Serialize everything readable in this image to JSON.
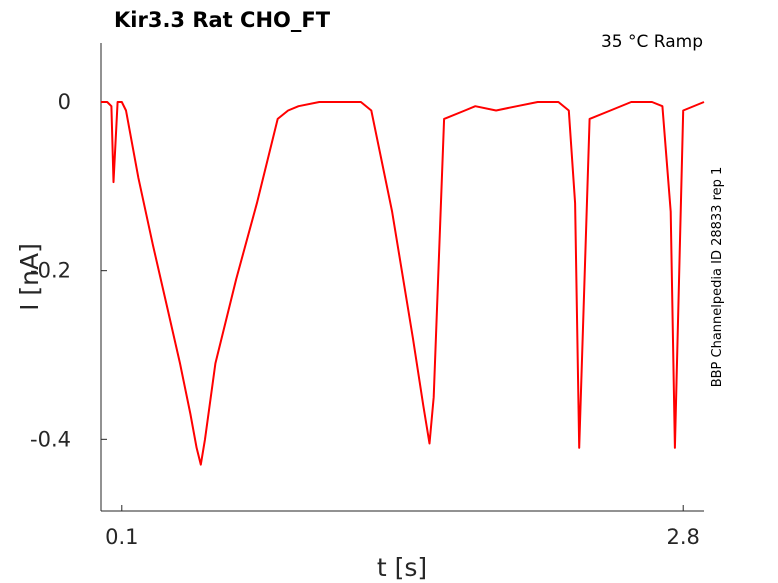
{
  "chart_data": {
    "type": "line",
    "title": "Kir3.3  Rat  CHO_FT",
    "annotation": "35 °C  Ramp",
    "side_label": "BBP Channelpedia ID 28833 rep 1",
    "xlabel": "t [s]",
    "ylabel": "I [nA]",
    "xlim": [
      0.0,
      2.9
    ],
    "ylim": [
      -0.485,
      0.07
    ],
    "x_ticks": [
      {
        "value": 0.1,
        "label": "0.1"
      },
      {
        "value": 2.8,
        "label": "2.8"
      }
    ],
    "y_ticks": [
      {
        "value": 0,
        "label": "0"
      },
      {
        "value": -0.2,
        "label": "-0.2"
      },
      {
        "value": -0.4,
        "label": "-0.4"
      }
    ],
    "grid": false,
    "series": [
      {
        "color": "#ff0000",
        "x": [
          0.0,
          0.03,
          0.05,
          0.06,
          0.08,
          0.1,
          0.12,
          0.18,
          0.25,
          0.32,
          0.38,
          0.43,
          0.46,
          0.48,
          0.5,
          0.55,
          0.65,
          0.75,
          0.85,
          0.9,
          0.95,
          1.05,
          1.15,
          1.25,
          1.3,
          1.4,
          1.5,
          1.55,
          1.58,
          1.6,
          1.65,
          1.75,
          1.8,
          1.9,
          2.0,
          2.1,
          2.2,
          2.25,
          2.28,
          2.3,
          2.35,
          2.45,
          2.55,
          2.65,
          2.7,
          2.74,
          2.76,
          2.8,
          2.9
        ],
        "y": [
          0.0,
          0.0,
          -0.005,
          -0.095,
          0.0,
          0.0,
          -0.01,
          -0.09,
          -0.17,
          -0.245,
          -0.31,
          -0.37,
          -0.41,
          -0.43,
          -0.4,
          -0.31,
          -0.21,
          -0.12,
          -0.02,
          -0.01,
          -0.005,
          0.0,
          0.0,
          0.0,
          -0.01,
          -0.13,
          -0.28,
          -0.36,
          -0.405,
          -0.35,
          -0.02,
          -0.01,
          -0.005,
          -0.01,
          -0.005,
          0.0,
          0.0,
          -0.01,
          -0.12,
          -0.41,
          -0.02,
          -0.01,
          0.0,
          0.0,
          -0.005,
          -0.13,
          -0.41,
          -0.01,
          0.0
        ]
      }
    ]
  }
}
